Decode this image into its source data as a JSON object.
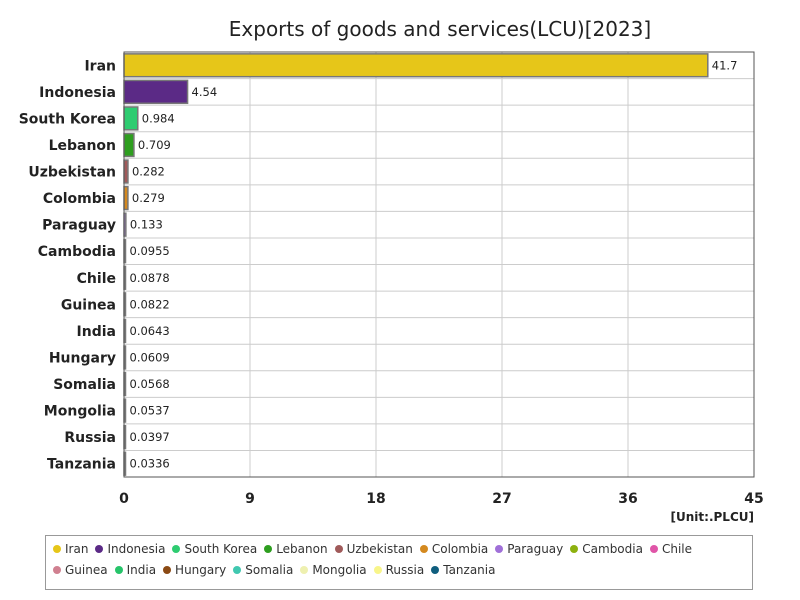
{
  "chart_data": {
    "type": "bar",
    "orientation": "horizontal",
    "title": "Exports of goods and services(LCU)[2023]",
    "unit": "[Unit:.PLCU]",
    "categories": [
      "Iran",
      "Indonesia",
      "South Korea",
      "Lebanon",
      "Uzbekistan",
      "Colombia",
      "Paraguay",
      "Cambodia",
      "Chile",
      "Guinea",
      "India",
      "Hungary",
      "Somalia",
      "Mongolia",
      "Russia",
      "Tanzania"
    ],
    "values": [
      41.7,
      4.54,
      0.984,
      0.709,
      0.282,
      0.279,
      0.133,
      0.0955,
      0.0878,
      0.0822,
      0.0643,
      0.0609,
      0.0568,
      0.0537,
      0.0397,
      0.0336
    ],
    "value_labels": [
      "41.7",
      "4.54",
      "0.984",
      "0.709",
      "0.282",
      "0.279",
      "0.133",
      "0.0955",
      "0.0878",
      "0.0822",
      "0.0643",
      "0.0609",
      "0.0568",
      "0.0537",
      "0.0397",
      "0.0336"
    ],
    "colors": [
      "#e6c619",
      "#5b2a86",
      "#2ecc71",
      "#2e9e1f",
      "#a05a5a",
      "#d4891f",
      "#a070d8",
      "#8db10f",
      "#e055a8",
      "#d08090",
      "#27c46a",
      "#8b4a14",
      "#40c8b0",
      "#eef0b0",
      "#f8f58a",
      "#0f5e7e"
    ],
    "xlim": [
      0,
      45
    ],
    "xticks": [
      0,
      9,
      18,
      27,
      36,
      45
    ],
    "xtick_labels": [
      "0",
      "9",
      "18",
      "27",
      "36",
      "45"
    ],
    "grid": true,
    "legend_position": "bottom",
    "legend": [
      {
        "name": "Iran",
        "color": "#e6c619"
      },
      {
        "name": "Indonesia",
        "color": "#5b2a86"
      },
      {
        "name": "South Korea",
        "color": "#2ecc71"
      },
      {
        "name": "Lebanon",
        "color": "#2e9e1f"
      },
      {
        "name": "Uzbekistan",
        "color": "#a05a5a"
      },
      {
        "name": "Colombia",
        "color": "#d4891f"
      },
      {
        "name": "Paraguay",
        "color": "#a070d8"
      },
      {
        "name": "Cambodia",
        "color": "#8db10f"
      },
      {
        "name": "Chile",
        "color": "#e055a8"
      },
      {
        "name": "Guinea",
        "color": "#d08090"
      },
      {
        "name": "India",
        "color": "#27c46a"
      },
      {
        "name": "Hungary",
        "color": "#8b4a14"
      },
      {
        "name": "Somalia",
        "color": "#40c8b0"
      },
      {
        "name": "Mongolia",
        "color": "#eef0b0"
      },
      {
        "name": "Russia",
        "color": "#f8f58a"
      },
      {
        "name": "Tanzania",
        "color": "#0f5e7e"
      }
    ]
  }
}
